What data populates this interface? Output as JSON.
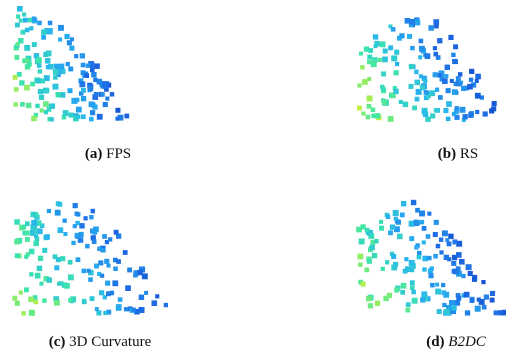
{
  "panels": [
    {
      "label": "(a)",
      "name": "FPS"
    },
    {
      "label": "(b)",
      "name": "RS"
    },
    {
      "label": "(c)",
      "name": "3D Curvature"
    },
    {
      "label": "(d)",
      "name": "B2DC"
    }
  ]
}
